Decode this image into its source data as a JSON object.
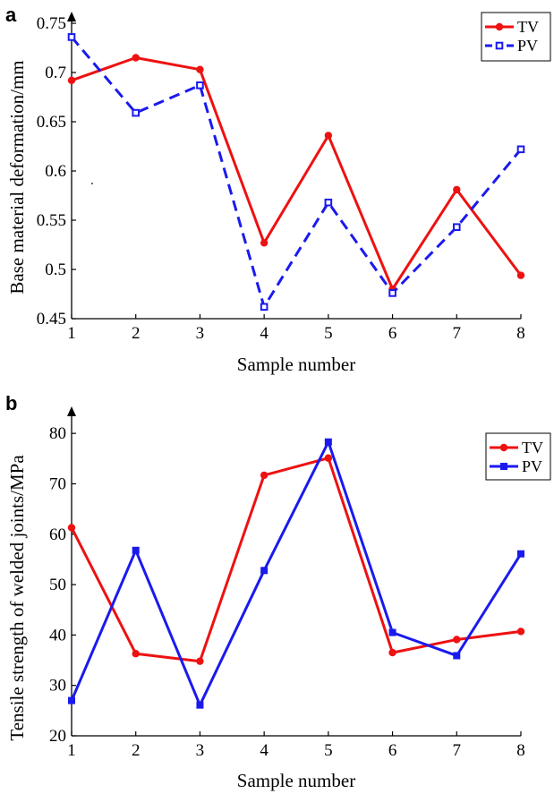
{
  "chart_data": [
    {
      "panel_label": "a",
      "type": "line",
      "xlabel": "Sample number",
      "ylabel": "Base material deformation/mm",
      "x": [
        1,
        2,
        3,
        4,
        5,
        6,
        7,
        8
      ],
      "xlim": [
        1,
        8
      ],
      "ylim": [
        0.45,
        0.76
      ],
      "yticks": [
        "0.45",
        "0.5",
        "0.55",
        "0.6",
        "0.65",
        "0.7",
        "0.75"
      ],
      "xticks": [
        "1",
        "2",
        "3",
        "4",
        "5",
        "6",
        "7",
        "8"
      ],
      "legend_position": "top-right",
      "grid": false,
      "series": [
        {
          "name": "TV",
          "color": "#ee1111",
          "dash": "solid",
          "marker": "filled-circle",
          "values": [
            0.692,
            0.715,
            0.703,
            0.527,
            0.636,
            0.48,
            0.581,
            0.494
          ]
        },
        {
          "name": "PV",
          "color": "#1a1aee",
          "dash": "dashed",
          "marker": "open-square",
          "values": [
            0.736,
            0.659,
            0.687,
            0.462,
            0.568,
            0.476,
            0.543,
            0.622
          ]
        }
      ]
    },
    {
      "panel_label": "b",
      "type": "line",
      "xlabel": "Sample number",
      "ylabel": "Tensile strength of welded joints/MPa",
      "x": [
        1,
        2,
        3,
        4,
        5,
        6,
        7,
        8
      ],
      "xlim": [
        1,
        8
      ],
      "ylim": [
        20,
        85
      ],
      "yticks": [
        "20",
        "30",
        "40",
        "50",
        "60",
        "70",
        "80"
      ],
      "xticks": [
        "1",
        "2",
        "3",
        "4",
        "5",
        "6",
        "7",
        "8"
      ],
      "legend_position": "top-right",
      "grid": false,
      "series": [
        {
          "name": "TV",
          "color": "#ee1111",
          "dash": "solid",
          "marker": "filled-circle",
          "values": [
            61.3,
            36.3,
            34.8,
            71.7,
            75.1,
            36.5,
            39.1,
            40.7
          ]
        },
        {
          "name": "PV",
          "color": "#1a1aee",
          "dash": "solid",
          "marker": "filled-square",
          "values": [
            27.0,
            56.8,
            26.1,
            52.8,
            78.3,
            40.5,
            35.9,
            56.1
          ]
        }
      ]
    }
  ]
}
